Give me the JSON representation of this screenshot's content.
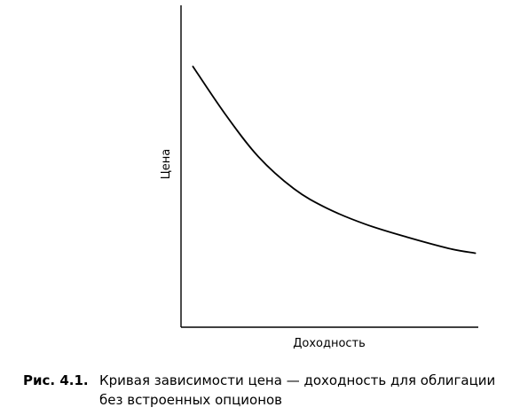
{
  "chart_data": {
    "type": "line",
    "title": "",
    "xlabel": "Доходность",
    "ylabel": "Цена",
    "grid": false,
    "legend": "none",
    "xlim": [
      0,
      10
    ],
    "ylim": [
      0,
      10
    ],
    "series": [
      {
        "x": [
          0.4,
          1.5,
          2.6,
          3.8,
          4.9,
          6.2,
          7.6,
          9.0,
          9.9
        ],
        "y": [
          8.1,
          6.6,
          5.3,
          4.3,
          3.7,
          3.2,
          2.8,
          2.45,
          2.3
        ]
      }
    ],
    "line_color": "#000000"
  },
  "caption": {
    "label": "Рис. 4.1.",
    "text": "Кривая зависимости цена — доходность для облигации без встроенных опционов"
  }
}
